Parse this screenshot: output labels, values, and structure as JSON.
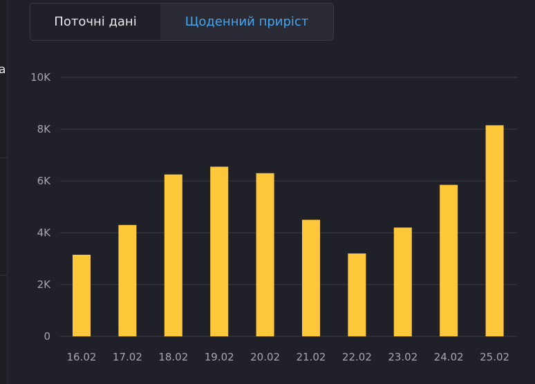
{
  "tabs": [
    {
      "label": "Поточні дані",
      "active": false
    },
    {
      "label": "Щоденний приріст",
      "active": true
    }
  ],
  "left_fragment": "а",
  "colors": {
    "background": "#202029",
    "bar": "#ffc83a",
    "grid": "#3a3a44",
    "active_tab_text": "#44a6f0",
    "tick_text": "#a6a6b0"
  },
  "chart_data": {
    "type": "bar",
    "title": "",
    "xlabel": "",
    "ylabel": "",
    "categories": [
      "16.02",
      "17.02",
      "18.02",
      "19.02",
      "20.02",
      "21.02",
      "22.02",
      "23.02",
      "24.02",
      "25.02"
    ],
    "values": [
      3150,
      4300,
      6250,
      6550,
      6300,
      4500,
      3200,
      4200,
      5850,
      8150
    ],
    "ylim": [
      0,
      10000
    ],
    "yticks": [
      0,
      2000,
      4000,
      6000,
      8000,
      10000
    ],
    "ytick_labels": [
      "0",
      "2K",
      "4K",
      "6K",
      "8K",
      "10K"
    ],
    "grid": true
  }
}
